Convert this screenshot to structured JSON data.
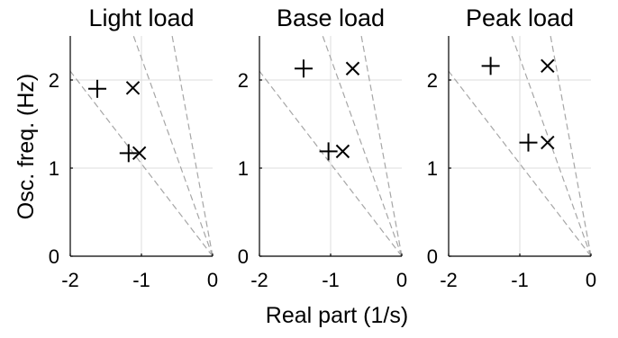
{
  "chart_data": [
    {
      "type": "scatter",
      "title": "Light load",
      "xlim": [
        -2,
        0
      ],
      "ylim": [
        0,
        2.5
      ],
      "xticks": [
        -2,
        -1,
        0
      ],
      "yticks": [
        0,
        1,
        2
      ],
      "grid": true,
      "damping_ray_slopes": [
        1.05,
        2.25,
        4.4
      ],
      "series": [
        {
          "marker": "plus",
          "points": [
            {
              "x": -1.62,
              "y": 1.9
            },
            {
              "x": -1.18,
              "y": 1.17
            }
          ]
        },
        {
          "marker": "cross",
          "points": [
            {
              "x": -1.12,
              "y": 1.91
            },
            {
              "x": -1.03,
              "y": 1.17
            }
          ]
        }
      ]
    },
    {
      "type": "scatter",
      "title": "Base load",
      "xlim": [
        -2,
        0
      ],
      "ylim": [
        0,
        2.5
      ],
      "xticks": [
        -2,
        -1,
        0
      ],
      "yticks": [
        0,
        1,
        2
      ],
      "grid": true,
      "damping_ray_slopes": [
        1.05,
        2.25,
        4.4
      ],
      "series": [
        {
          "marker": "plus",
          "points": [
            {
              "x": -1.38,
              "y": 2.13
            },
            {
              "x": -1.03,
              "y": 1.19
            }
          ]
        },
        {
          "marker": "cross",
          "points": [
            {
              "x": -0.69,
              "y": 2.13
            },
            {
              "x": -0.83,
              "y": 1.19
            }
          ]
        }
      ]
    },
    {
      "type": "scatter",
      "title": "Peak load",
      "xlim": [
        -2,
        0
      ],
      "ylim": [
        0,
        2.5
      ],
      "xticks": [
        -2,
        -1,
        0
      ],
      "yticks": [
        0,
        1,
        2
      ],
      "grid": true,
      "damping_ray_slopes": [
        1.05,
        2.25,
        4.4
      ],
      "series": [
        {
          "marker": "plus",
          "points": [
            {
              "x": -1.41,
              "y": 2.16
            },
            {
              "x": -0.88,
              "y": 1.29
            }
          ]
        },
        {
          "marker": "cross",
          "points": [
            {
              "x": -0.61,
              "y": 2.16
            },
            {
              "x": -0.61,
              "y": 1.29
            }
          ]
        }
      ]
    }
  ],
  "ylabel": "Osc. freq. (Hz)",
  "xlabel": "Real part (1/s)"
}
